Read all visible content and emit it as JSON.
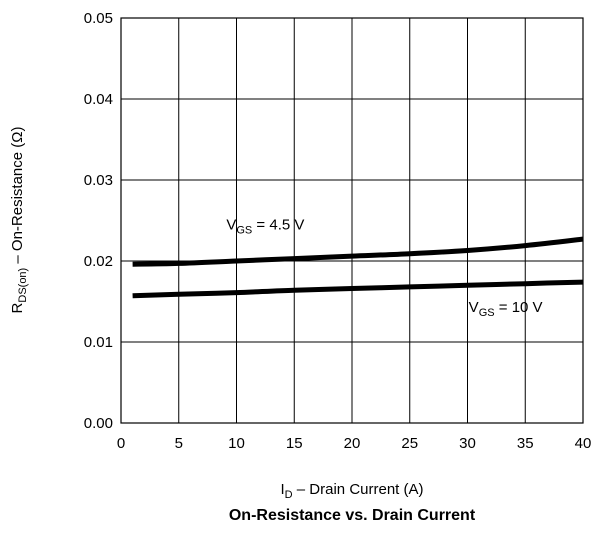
{
  "chart_data": {
    "type": "line",
    "title": "On-Resistance vs. Drain Current",
    "xlabel": {
      "main": "I",
      "sub": "D",
      "rest": " – Drain Current (A)"
    },
    "ylabel": {
      "main": "R",
      "sub": "DS(on)",
      "rest": " – On-Resistance (Ω)"
    },
    "xlim": [
      0,
      40
    ],
    "ylim": [
      0,
      0.05
    ],
    "x_ticks": [
      0,
      5,
      10,
      15,
      20,
      25,
      30,
      35,
      40
    ],
    "x_tick_labels": [
      "0",
      "5",
      "10",
      "15",
      "20",
      "25",
      "30",
      "35",
      "40"
    ],
    "y_ticks": [
      0,
      0.01,
      0.02,
      0.03,
      0.04,
      0.05
    ],
    "y_tick_labels": [
      "0.00",
      "0.01",
      "0.02",
      "0.03",
      "0.04",
      "0.05"
    ],
    "grid": true,
    "series": [
      {
        "x": [
          1,
          5,
          10,
          15,
          20,
          25,
          30,
          35,
          40
        ],
        "y": [
          0.0196,
          0.0197,
          0.02,
          0.0203,
          0.0206,
          0.0209,
          0.0213,
          0.0219,
          0.0227
        ]
      },
      {
        "x": [
          1,
          5,
          10,
          15,
          20,
          25,
          30,
          35,
          40
        ],
        "y": [
          0.0157,
          0.0159,
          0.0161,
          0.0164,
          0.0166,
          0.0168,
          0.017,
          0.0172,
          0.0174
        ]
      }
    ],
    "annotations": [
      {
        "main": "V",
        "sub": "GS",
        "rest": " = 4.5 V",
        "x": 12.5,
        "y": 0.0239
      },
      {
        "main": "V",
        "sub": "GS",
        "rest": " = 10 V",
        "x": 33.3,
        "y": 0.0137
      }
    ]
  }
}
